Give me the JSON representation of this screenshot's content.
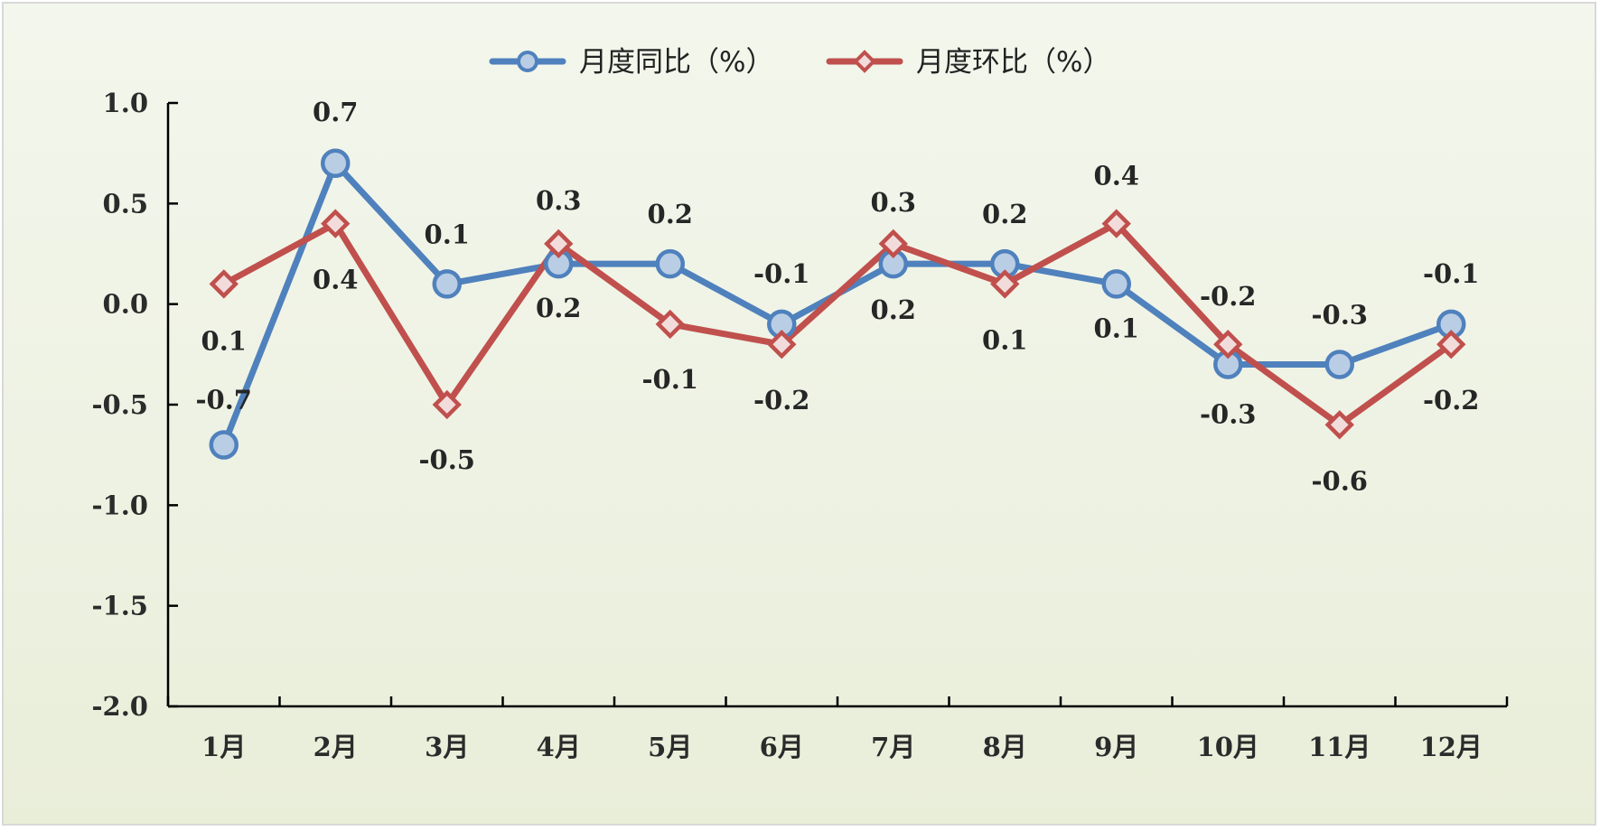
{
  "chart_data": {
    "type": "line",
    "categories": [
      "1月",
      "2月",
      "3月",
      "4月",
      "5月",
      "6月",
      "7月",
      "8月",
      "9月",
      "10月",
      "11月",
      "12月"
    ],
    "series": [
      {
        "name": "月度同比（%）",
        "values": [
          -0.7,
          0.7,
          0.1,
          0.2,
          0.2,
          -0.1,
          0.2,
          0.2,
          0.1,
          -0.3,
          -0.3,
          -0.1
        ],
        "labels": [
          "-0.7",
          "0.7",
          "0.1",
          "0.2",
          "0.2",
          "-0.1",
          "0.2",
          "0.2",
          "0.1",
          "-0.3",
          "-0.3",
          "-0.1"
        ],
        "color": "#4f81bd",
        "marker": "circle",
        "marker_fill": "#b9cde5"
      },
      {
        "name": "月度环比（%）",
        "values": [
          0.1,
          0.4,
          -0.5,
          0.3,
          -0.1,
          -0.2,
          0.3,
          0.1,
          0.4,
          -0.2,
          -0.6,
          -0.2
        ],
        "labels": [
          "0.1",
          "0.4",
          "-0.5",
          "0.3",
          "-0.1",
          "-0.2",
          "0.3",
          "0.1",
          "0.4",
          "-0.2",
          "-0.6",
          "-0.2"
        ],
        "color": "#c0504d",
        "marker": "diamond",
        "marker_fill": "#f2dcdb"
      }
    ],
    "ylim": [
      -2.0,
      1.0
    ],
    "yticks": [
      "1.0",
      "0.5",
      "0.0",
      "-0.5",
      "-1.0",
      "-1.5",
      "-2.0"
    ],
    "grid": false,
    "legend": "top"
  }
}
